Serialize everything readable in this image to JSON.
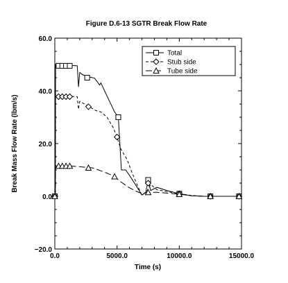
{
  "chart_data": {
    "type": "line",
    "title": "Figure D.6-13  SGTR Break Flow Rate",
    "xlabel": "Time (s)",
    "ylabel": "Break Mass Flow Rate (lbm/s)",
    "xlim": [
      0,
      15000
    ],
    "ylim": [
      -20,
      60
    ],
    "x_ticks": [
      0,
      5000,
      10000,
      15000
    ],
    "x_tick_labels": [
      "0.0",
      "5000.0",
      "10000.0",
      "15000.0"
    ],
    "y_ticks": [
      -20,
      0,
      20,
      40,
      60
    ],
    "y_tick_labels": [
      "−20.0",
      "0.0",
      "20.0",
      "40.0",
      "60.0"
    ],
    "grid": false,
    "legend_position": "top-right",
    "series": [
      {
        "name": "Total",
        "line_style": "solid",
        "marker": "square",
        "points": [
          [
            0,
            0
          ],
          [
            40,
            0
          ],
          [
            60,
            50
          ],
          [
            1800,
            49.5
          ],
          [
            1900,
            41.5
          ],
          [
            2000,
            47
          ],
          [
            2200,
            46.2
          ],
          [
            2600,
            45.5
          ],
          [
            3200,
            44.8
          ],
          [
            3600,
            42.2
          ],
          [
            3700,
            43
          ],
          [
            4000,
            40
          ],
          [
            4400,
            36
          ],
          [
            4800,
            32
          ],
          [
            5100,
            30
          ],
          [
            5350,
            10
          ],
          [
            5700,
            10
          ],
          [
            6200,
            6.5
          ],
          [
            6600,
            3.5
          ],
          [
            7000,
            0.5
          ],
          [
            7300,
            1.5
          ],
          [
            7500,
            6
          ],
          [
            7700,
            2.2
          ],
          [
            8200,
            3.4
          ],
          [
            9000,
            2.2
          ],
          [
            10000,
            1
          ],
          [
            11000,
            0.2
          ],
          [
            12000,
            0
          ],
          [
            13500,
            0
          ],
          [
            14800,
            0
          ]
        ],
        "marker_points": [
          [
            0,
            0
          ],
          [
            300,
            49.5
          ],
          [
            600,
            49.5
          ],
          [
            900,
            49.5
          ],
          [
            1200,
            49.5
          ],
          [
            2600,
            45
          ],
          [
            5100,
            30
          ],
          [
            7500,
            6.2
          ],
          [
            10000,
            1
          ],
          [
            12500,
            0
          ],
          [
            14800,
            0
          ]
        ]
      },
      {
        "name": "Stub side",
        "line_style": "short-dash",
        "marker": "diamond",
        "points": [
          [
            0,
            0
          ],
          [
            40,
            0
          ],
          [
            60,
            38
          ],
          [
            1800,
            37.8
          ],
          [
            1900,
            33
          ],
          [
            2000,
            36
          ],
          [
            2400,
            35
          ],
          [
            2700,
            34.2
          ],
          [
            3300,
            32.5
          ],
          [
            3700,
            32
          ],
          [
            4200,
            30
          ],
          [
            4700,
            26
          ],
          [
            5000,
            22.5
          ],
          [
            5300,
            18
          ],
          [
            5800,
            14
          ],
          [
            6200,
            9
          ],
          [
            6600,
            4.5
          ],
          [
            7000,
            0.3
          ],
          [
            7400,
            2
          ],
          [
            7700,
            4.5
          ],
          [
            8200,
            2.5
          ],
          [
            9000,
            1.8
          ],
          [
            10000,
            1
          ],
          [
            11000,
            0.3
          ],
          [
            12000,
            0
          ],
          [
            14800,
            0
          ]
        ],
        "marker_points": [
          [
            0,
            0
          ],
          [
            300,
            37.8
          ],
          [
            600,
            37.8
          ],
          [
            900,
            37.8
          ],
          [
            1200,
            37.8
          ],
          [
            2700,
            34
          ],
          [
            5000,
            22.5
          ],
          [
            7500,
            5
          ],
          [
            10000,
            1
          ],
          [
            12500,
            0
          ],
          [
            14800,
            0
          ]
        ]
      },
      {
        "name": "Tube side",
        "line_style": "long-dash",
        "marker": "triangle",
        "points": [
          [
            0,
            0
          ],
          [
            40,
            0
          ],
          [
            60,
            11.5
          ],
          [
            1300,
            11.5
          ],
          [
            2000,
            11.2
          ],
          [
            3000,
            10.8
          ],
          [
            3500,
            10
          ],
          [
            4200,
            8.8
          ],
          [
            4800,
            7.5
          ],
          [
            5300,
            5.5
          ],
          [
            5900,
            3.5
          ],
          [
            6400,
            2.2
          ],
          [
            7000,
            1
          ],
          [
            7500,
            1.5
          ],
          [
            8200,
            1.5
          ],
          [
            9000,
            1.2
          ],
          [
            10000,
            0.8
          ],
          [
            11000,
            0.2
          ],
          [
            12000,
            0
          ],
          [
            14800,
            0
          ]
        ],
        "marker_points": [
          [
            0,
            0
          ],
          [
            300,
            11.5
          ],
          [
            600,
            11.5
          ],
          [
            900,
            11.5
          ],
          [
            1200,
            11.5
          ],
          [
            2700,
            10.8
          ],
          [
            4800,
            7.5
          ],
          [
            7500,
            1.5
          ],
          [
            10000,
            0.8
          ],
          [
            12500,
            0
          ],
          [
            14800,
            0
          ]
        ]
      }
    ]
  }
}
